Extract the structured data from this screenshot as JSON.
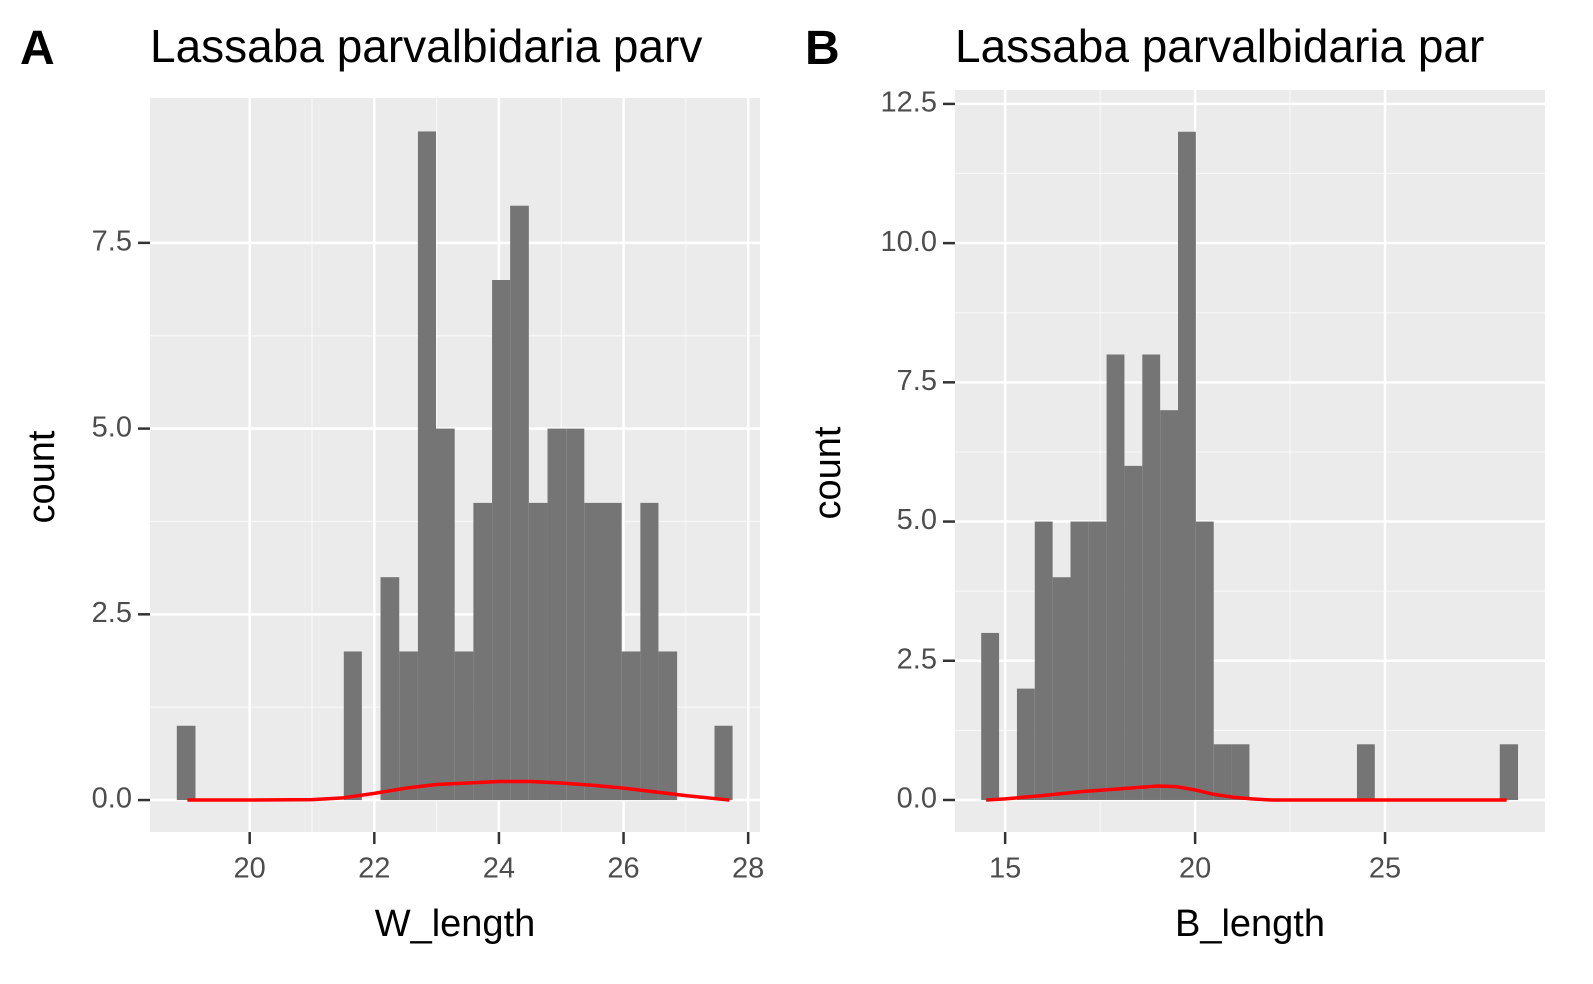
{
  "chart_data": [
    {
      "type": "histogram",
      "tag": "A",
      "title": "Lassaba parvalbidaria parv",
      "x_label": "W_length",
      "y_label": "count",
      "bins": [
        18.83,
        19.13,
        19.42,
        19.72,
        20.02,
        20.32,
        20.61,
        20.91,
        21.21,
        21.51,
        21.8,
        22.1,
        22.4,
        22.7,
        22.99,
        23.29,
        23.59,
        23.89,
        24.18,
        24.48,
        24.78,
        25.08,
        25.37,
        25.67,
        25.97,
        26.27,
        26.56,
        26.86,
        27.16,
        27.46,
        27.75
      ],
      "counts": [
        1,
        0,
        0,
        0,
        0,
        0,
        0,
        0,
        0,
        2,
        0,
        3,
        2,
        9,
        5,
        2,
        4,
        7,
        8,
        4,
        5,
        5,
        4,
        4,
        2,
        4,
        2,
        0,
        0,
        1
      ],
      "color": "#757575",
      "density": {
        "x": [
          19,
          20,
          21,
          21.5,
          22,
          22.5,
          23,
          23.5,
          24,
          24.5,
          25,
          25.5,
          26,
          26.5,
          27,
          27.7
        ],
        "y": [
          0,
          0,
          0.005,
          0.03,
          0.09,
          0.16,
          0.21,
          0.23,
          0.25,
          0.25,
          0.23,
          0.2,
          0.16,
          0.11,
          0.06,
          0
        ],
        "color": "#ff0000"
      },
      "xlim": [
        18.4,
        28.19
      ],
      "ylim": [
        -0.43,
        9.45
      ],
      "xticks": [
        20,
        22,
        24,
        26,
        28
      ],
      "yticks": [
        {
          "value": 0,
          "label": "0.0"
        },
        {
          "value": 2.5,
          "label": "2.5"
        },
        {
          "value": 5,
          "label": "5.0"
        },
        {
          "value": 7.5,
          "label": "7.5"
        }
      ],
      "grid": true
    },
    {
      "type": "histogram",
      "tag": "B",
      "title": "Lassaba parvalbidaria par",
      "x_label": "B_length",
      "y_label": "count",
      "bins": [
        14.37,
        14.84,
        15.31,
        15.78,
        16.25,
        16.72,
        17.19,
        17.67,
        18.14,
        18.61,
        19.08,
        19.55,
        20.02,
        20.49,
        20.96,
        21.43,
        21.9,
        22.37,
        22.84,
        23.31,
        23.79,
        24.26,
        24.73,
        25.2,
        25.67,
        26.14,
        26.61,
        27.08,
        27.55,
        28.02,
        28.5
      ],
      "counts": [
        3,
        0,
        2,
        5,
        4,
        5,
        5,
        8,
        6,
        8,
        7,
        12,
        5,
        1,
        1,
        0,
        0,
        0,
        0,
        0,
        0,
        1,
        0,
        0,
        0,
        0,
        0,
        0,
        0,
        1
      ],
      "color": "#757575",
      "density": {
        "x": [
          14.5,
          15,
          16,
          17,
          18,
          19,
          19.5,
          20,
          20.5,
          21,
          21.5,
          22,
          24,
          26,
          28.2
        ],
        "y": [
          0,
          0.02,
          0.08,
          0.15,
          0.2,
          0.25,
          0.24,
          0.18,
          0.1,
          0.05,
          0.02,
          0,
          0,
          0,
          0
        ],
        "color": "#ff0000"
      },
      "xlim": [
        13.68,
        29.21
      ],
      "ylim": [
        -0.575,
        12.75
      ],
      "xticks": [
        15,
        20,
        25
      ],
      "yticks": [
        {
          "value": 0,
          "label": "0.0"
        },
        {
          "value": 2.5,
          "label": "2.5"
        },
        {
          "value": 5,
          "label": "5.0"
        },
        {
          "value": 7.5,
          "label": "7.5"
        },
        {
          "value": 10,
          "label": "10.0"
        },
        {
          "value": 12.5,
          "label": "12.5"
        }
      ],
      "grid": true
    }
  ]
}
